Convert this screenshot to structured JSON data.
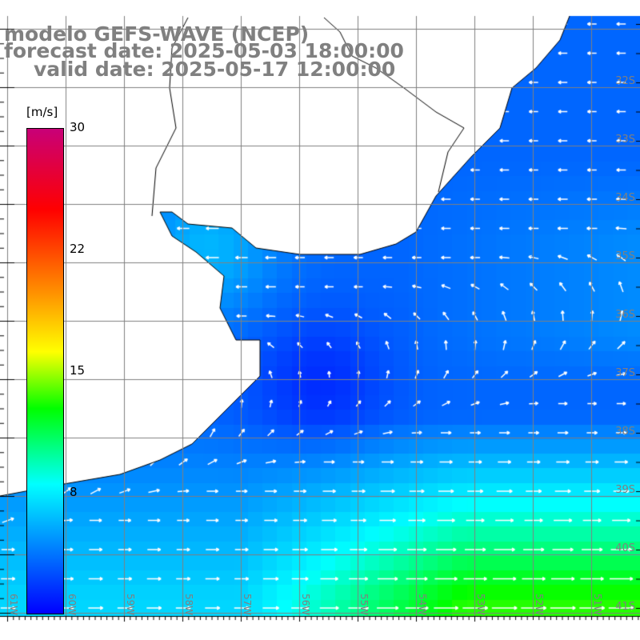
{
  "title": {
    "line1": "modelo GEFS-WAVE (NCEP)",
    "line2": "forecast date: 2025-05-03 18:00:00",
    "line3": "valid date: 2025-05-17 12:00:00"
  },
  "colorbar": {
    "unit": "[m/s]",
    "ticks": [
      "30",
      "22",
      "15",
      "8"
    ],
    "range": [
      0,
      30
    ],
    "stops": [
      {
        "v": 0,
        "color": "#0000ff"
      },
      {
        "v": 8,
        "color": "#00ffff"
      },
      {
        "v": 12.7,
        "color": "#00ff00"
      },
      {
        "v": 16.2,
        "color": "#ffff00"
      },
      {
        "v": 20,
        "color": "#ff8c00"
      },
      {
        "v": 25,
        "color": "#ff0000"
      },
      {
        "v": 30,
        "color": "#c80078"
      }
    ]
  },
  "lat_labels": [
    "32S",
    "33S",
    "34S",
    "35S",
    "36S",
    "37S",
    "38S",
    "39S",
    "40S",
    "41S"
  ],
  "lon_labels": [
    "61W",
    "60W",
    "59W",
    "58W",
    "57W",
    "56W",
    "55W",
    "54W",
    "53W",
    "52W",
    "51W"
  ],
  "colors": {
    "grid": "#808080",
    "land": "#ffffff",
    "coast": "#000000",
    "arrow": "#ffffff"
  }
}
